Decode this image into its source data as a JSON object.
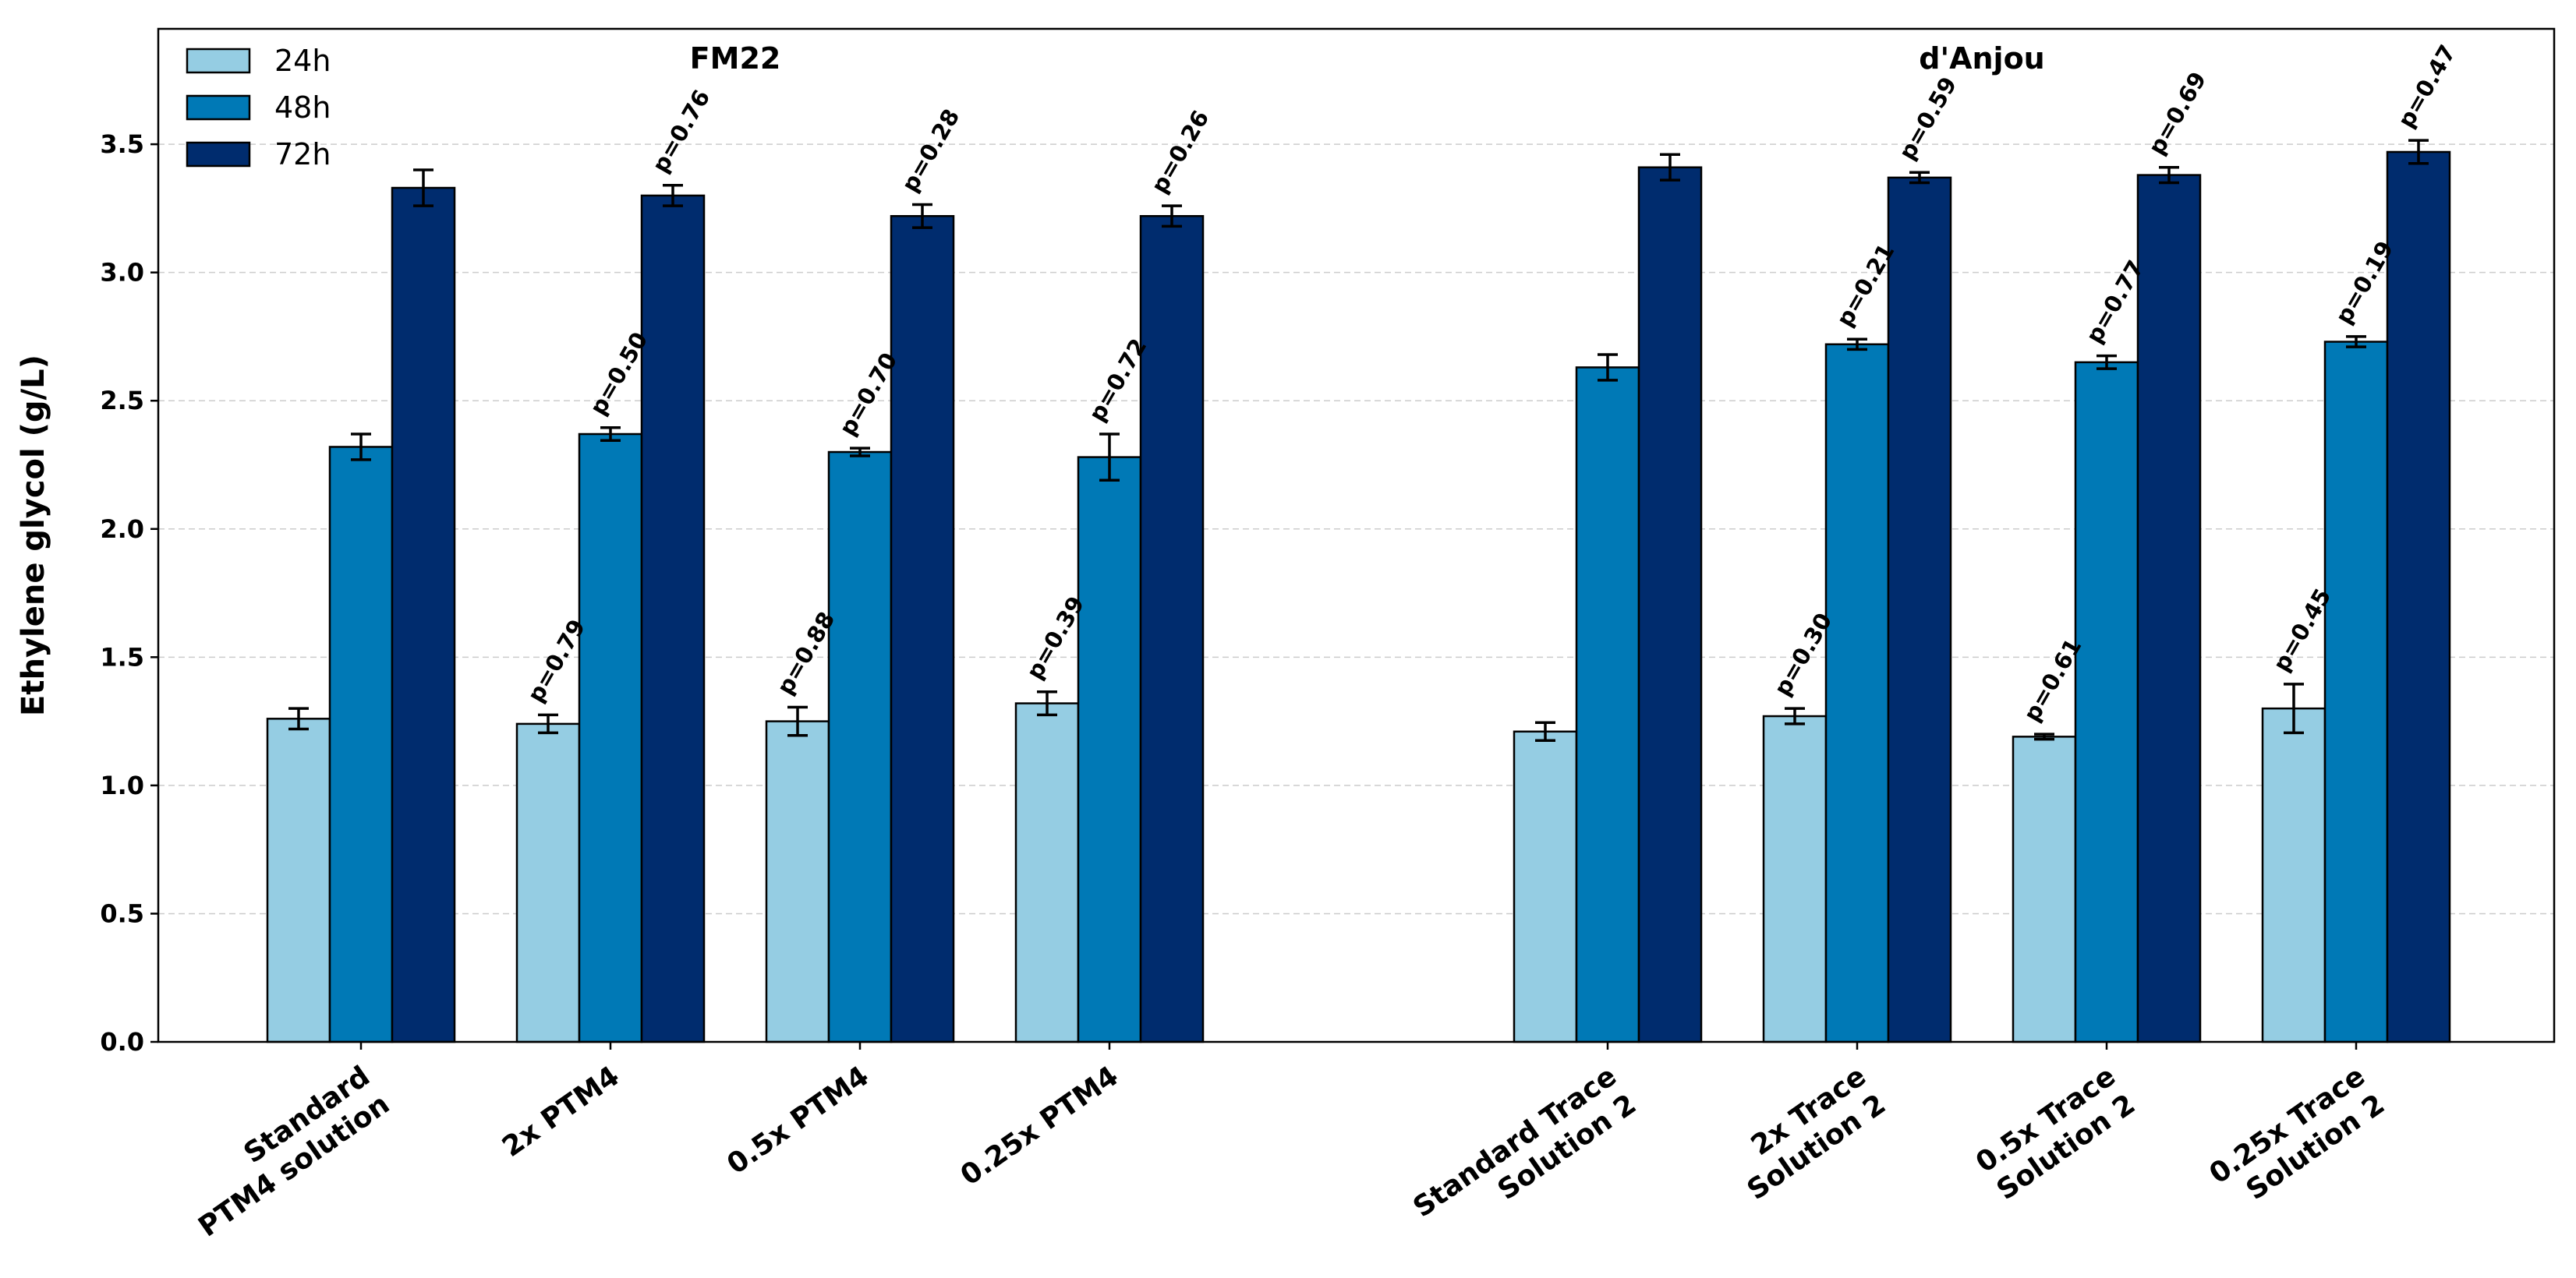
{
  "chart_data": {
    "type": "bar",
    "ylabel": "Ethylene glycol (g/L)",
    "ylim": [
      0,
      3.95
    ],
    "yticks": [
      "0.0",
      "0.5",
      "1.0",
      "1.5",
      "2.0",
      "2.5",
      "3.0",
      "3.5"
    ],
    "grid": "horizontal dashed",
    "legend_position": "top-left",
    "series": [
      {
        "name": "24h",
        "color": "#95cde3"
      },
      {
        "name": "48h",
        "color": "#0079b6"
      },
      {
        "name": "72h",
        "color": "#002c6e"
      }
    ],
    "groups": [
      {
        "title": "FM22",
        "categories": [
          {
            "label": [
              "Standard",
              "PTM4 solution"
            ],
            "values": [
              1.26,
              2.32,
              3.33
            ],
            "errors": [
              0.04,
              0.05,
              0.07
            ],
            "pvalues": [
              null,
              null,
              null
            ]
          },
          {
            "label": [
              "2x PTM4"
            ],
            "values": [
              1.24,
              2.37,
              3.3
            ],
            "errors": [
              0.035,
              0.025,
              0.04
            ],
            "pvalues": [
              "p=0.79",
              "p=0.50",
              "p=0.76"
            ]
          },
          {
            "label": [
              "0.5x PTM4"
            ],
            "values": [
              1.25,
              2.3,
              3.22
            ],
            "errors": [
              0.055,
              0.015,
              0.045
            ],
            "pvalues": [
              "p=0.88",
              "p=0.70",
              "p=0.28"
            ]
          },
          {
            "label": [
              "0.25x PTM4"
            ],
            "values": [
              1.32,
              2.28,
              3.22
            ],
            "errors": [
              0.045,
              0.09,
              0.04
            ],
            "pvalues": [
              "p=0.39",
              "p=0.72",
              "p=0.26"
            ]
          }
        ]
      },
      {
        "title": "d'Anjou",
        "categories": [
          {
            "label": [
              "Standard Trace",
              "Solution 2"
            ],
            "values": [
              1.21,
              2.63,
              3.41
            ],
            "errors": [
              0.035,
              0.05,
              0.05
            ],
            "pvalues": [
              null,
              null,
              null
            ]
          },
          {
            "label": [
              "2x Trace",
              "Solution 2"
            ],
            "values": [
              1.27,
              2.72,
              3.37
            ],
            "errors": [
              0.03,
              0.02,
              0.02
            ],
            "pvalues": [
              "p=0.30",
              "p=0.21",
              "p=0.59"
            ]
          },
          {
            "label": [
              "0.5x Trace",
              "Solution 2"
            ],
            "values": [
              1.19,
              2.65,
              3.38
            ],
            "errors": [
              0.01,
              0.025,
              0.03
            ],
            "pvalues": [
              "p=0.61",
              "p=0.77",
              "p=0.69"
            ]
          },
          {
            "label": [
              "0.25x Trace",
              "Solution 2"
            ],
            "values": [
              1.3,
              2.73,
              3.47
            ],
            "errors": [
              0.095,
              0.02,
              0.045
            ],
            "pvalues": [
              "p=0.45",
              "p=0.19",
              "p=0.47"
            ]
          }
        ]
      }
    ]
  }
}
